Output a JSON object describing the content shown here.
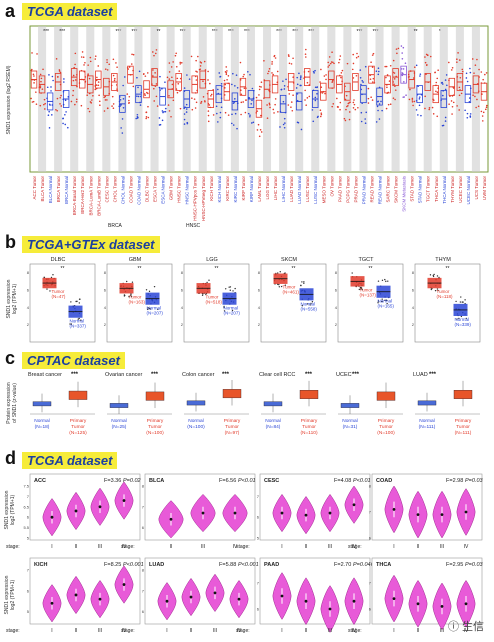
{
  "panels": {
    "a": {
      "letter": "a",
      "banner": "TCGA dataset",
      "ylabel": "SND1 expression (log2 RSEM)"
    },
    "b": {
      "letter": "b",
      "banner": "TCGA+GTEx dataset",
      "ylabel": "SND1 expression\nlog2 (TPM+1)"
    },
    "c": {
      "letter": "c",
      "banner": "CPTAC dataset",
      "ylabel": "Protein expression\nof SND1 (z-value)"
    },
    "d": {
      "letter": "d",
      "banner": "TCGA dataset",
      "ylabel": "SND1 expression\nlog2 (TPM+1)"
    }
  },
  "watermark": "ⓘ 生信",
  "colors": {
    "tumor": "#e23a2a",
    "normal": "#2a45d6",
    "violin": "#e85ad8",
    "gray": "#c8c8c8",
    "banner": "#f6ec3a"
  },
  "chart_data": [
    {
      "type": "box",
      "panel": "a",
      "categories": [
        "ACC.Tumor",
        "BLCA.Tumor",
        "BLCA.Normal",
        "BRCA.Tumor",
        "BRCA.Normal",
        "BRCA-Basal.Tumor",
        "BRCA-Her2.Tumor",
        "BRCA-LumA.Tumor",
        "BRCA-LumB.Tumor",
        "CESC.Tumor",
        "CHOL.Tumor",
        "CHOL.Normal",
        "COAD.Tumor",
        "COAD.Normal",
        "DLBC.Tumor",
        "ESCA.Tumor",
        "ESCA.Normal",
        "GBM.Tumor",
        "HNSC.Tumor",
        "HNSC.Normal",
        "HNSC-HPVpos.Tumor",
        "HNSC-HPVneg.Tumor",
        "KICH.Tumor",
        "KICH.Normal",
        "KIRC.Tumor",
        "KIRC.Normal",
        "KIRP.Tumor",
        "KIRP.Normal",
        "LAML.Tumor",
        "LGG.Tumor",
        "LIHC.Tumor",
        "LIHC.Normal",
        "LUAD.Tumor",
        "LUAD.Normal",
        "LUSC.Tumor",
        "LUSC.Normal",
        "MESO.Tumor",
        "OV.Tumor",
        "PAAD.Tumor",
        "PCPG.Tumor",
        "PRAD.Tumor",
        "PRAD.Normal",
        "READ.Tumor",
        "READ.Normal",
        "SARC.Tumor",
        "SKCM.Tumor",
        "SKCM.Metastasis",
        "STAD.Tumor",
        "STAD.Normal",
        "TGCT.Tumor",
        "THCA.Tumor",
        "THCA.Normal",
        "THYM.Tumor",
        "UCEC.Tumor",
        "UCEC.Normal",
        "UCS.Tumor",
        "UVM.Tumor"
      ],
      "values": [
        11.8,
        11.6,
        10.9,
        11.7,
        11.0,
        11.9,
        11.8,
        11.6,
        11.8,
        11.5,
        11.7,
        10.8,
        12.0,
        11.2,
        11.4,
        11.9,
        11.1,
        11.4,
        11.7,
        11.0,
        11.6,
        11.8,
        11.0,
        11.2,
        11.3,
        10.9,
        11.5,
        11.0,
        10.6,
        11.4,
        11.6,
        10.8,
        11.7,
        10.9,
        11.9,
        11.0,
        11.3,
        11.8,
        11.6,
        11.3,
        11.7,
        11.2,
        12.0,
        11.1,
        11.6,
        11.9,
        12.0,
        11.8,
        11.2,
        11.7,
        11.2,
        11.0,
        11.5,
        11.7,
        11.2,
        11.6,
        11.3
      ],
      "significance": [
        "",
        "***",
        "",
        "***",
        "",
        "",
        "",
        "",
        "",
        "",
        "***",
        "",
        "***",
        "",
        "",
        "**",
        "",
        "",
        "***",
        "",
        "",
        "",
        "***",
        "",
        "***",
        "",
        "***",
        "",
        "",
        "",
        "***",
        "",
        "***",
        "",
        "***",
        "",
        "",
        "",
        "",
        "",
        "***",
        "",
        "***",
        "",
        "",
        "",
        "",
        "**",
        "",
        "",
        "*",
        "",
        "",
        "",
        "",
        "",
        ""
      ],
      "group_labels": [
        "BRCA",
        "HNSC"
      ]
    },
    {
      "type": "box",
      "panel": "b",
      "subplots": [
        {
          "title": "DLBC",
          "sig": "**",
          "tumor_label": "Tumor",
          "tumor_n": "(N=47)",
          "normal_label": "Normal",
          "normal_n": "(N=337)",
          "tumor_median": 6.8,
          "normal_median": 3.5,
          "yticks": [
            2,
            4,
            6,
            8
          ]
        },
        {
          "title": "GBM",
          "sig": "**",
          "tumor_label": "Tumor",
          "tumor_n": "(N=163)",
          "normal_label": "Normal",
          "normal_n": "(N=207)",
          "tumor_median": 6.2,
          "normal_median": 5.0,
          "yticks": [
            2,
            4,
            6,
            8
          ]
        },
        {
          "title": "LGG",
          "sig": "**",
          "tumor_label": "Tumor",
          "tumor_n": "(N=518)",
          "normal_label": "Normal",
          "normal_n": "(N=207)",
          "tumor_median": 6.2,
          "normal_median": 5.0,
          "yticks": [
            2,
            4,
            6,
            8
          ]
        },
        {
          "title": "SKCM",
          "sig": "**",
          "tumor_label": "Tumor",
          "tumor_n": "(N=461)",
          "normal_label": "Normal",
          "normal_n": "(N=558)",
          "tumor_median": 7.3,
          "normal_median": 5.5,
          "yticks": [
            2,
            4,
            6,
            8
          ]
        },
        {
          "title": "TGCT",
          "sig": "**",
          "tumor_label": "Tumor",
          "tumor_n": "(N=137)",
          "normal_label": "Normal",
          "normal_n": "(N=165)",
          "tumor_median": 7.0,
          "normal_median": 5.8,
          "yticks": [
            2,
            4,
            6,
            8
          ]
        },
        {
          "title": "THYM",
          "sig": "**",
          "tumor_label": "Tumor",
          "tumor_n": "(N=118)",
          "normal_label": "Normal",
          "normal_n": "(N=339)",
          "tumor_median": 6.8,
          "normal_median": 3.7,
          "yticks": [
            2,
            4,
            6,
            8
          ]
        }
      ]
    },
    {
      "type": "box",
      "panel": "c",
      "subplots": [
        {
          "title": "Breast cancer",
          "sig": "***",
          "normal_label": "Normal",
          "normal_n": "(N=18)",
          "tumor_label": "Primary\nTumor",
          "tumor_n": "(N=125)",
          "normal_median": -0.8,
          "tumor_median": 0.2
        },
        {
          "title": "Ovarian cancer",
          "sig": "***",
          "normal_label": "Normal",
          "normal_n": "(N=25)",
          "tumor_label": "Primary\nTumor",
          "tumor_n": "(N=100)",
          "normal_median": -1.0,
          "tumor_median": 0.1
        },
        {
          "title": "Colon cancer",
          "sig": "***",
          "normal_label": "Normal",
          "normal_n": "(N=100)",
          "tumor_label": "Primary\nTumor",
          "tumor_n": "(N=97)",
          "normal_median": -0.7,
          "tumor_median": 0.4
        },
        {
          "title": "Clear cell RCC",
          "sig": "***",
          "normal_label": "Normal",
          "normal_n": "(N=84)",
          "tumor_label": "Primary\nTumor",
          "tumor_n": "(N=110)",
          "normal_median": -0.8,
          "tumor_median": 0.3
        },
        {
          "title": "UCEC",
          "sig": "***",
          "normal_label": "Normal",
          "normal_n": "(N=31)",
          "tumor_label": "Primary\nTumor",
          "tumor_n": "(N=100)",
          "normal_median": -1.0,
          "tumor_median": 0.1
        },
        {
          "title": "LUAD",
          "sig": "***",
          "normal_label": "Normal",
          "normal_n": "(N=111)",
          "tumor_label": "Primary\nTumor",
          "tumor_n": "(N=111)",
          "normal_median": -0.7,
          "tumor_median": 0.3
        }
      ]
    },
    {
      "type": "violin",
      "panel": "d",
      "stage_label": "stage:",
      "subplots": [
        {
          "title": "ACC",
          "stats": "F=3.36",
          "p": "P=0.02",
          "stages": [
            "I",
            "II",
            "III",
            "IV"
          ],
          "medians": [
            6.0,
            6.3,
            6.5,
            6.8
          ],
          "ylim": [
            5.0,
            7.5
          ],
          "yticks": [
            5.0,
            5.5,
            6.0,
            6.5,
            7.0,
            7.5
          ]
        },
        {
          "title": "BLCA",
          "stats": "F=6.56",
          "p": "P<0.01",
          "stages": [
            "II",
            "III",
            "IV"
          ],
          "medians": [
            6.4,
            6.7,
            6.7
          ],
          "ylim": [
            5.5,
            8.0
          ],
          "yticks": [
            6,
            7,
            8
          ]
        },
        {
          "title": "CESC",
          "stats": "F=4.08",
          "p": "P<0.01",
          "stages": [
            "I",
            "II",
            "III",
            "IV"
          ],
          "medians": [
            6.2,
            6.1,
            6.2,
            6.6
          ],
          "ylim": [
            5.0,
            7.5
          ],
          "yticks": [
            5,
            6,
            7
          ]
        },
        {
          "title": "COAD",
          "stats": "F=2.98",
          "p": "P=0.03",
          "stages": [
            "I",
            "II",
            "III",
            "IV"
          ],
          "medians": [
            7.1,
            6.9,
            6.9,
            7.0
          ],
          "ylim": [
            6.0,
            8.0
          ],
          "yticks": [
            6,
            7,
            8
          ]
        },
        {
          "title": "KICH",
          "stats": "F=8.25",
          "p": "P<0.001",
          "stages": [
            "I",
            "II",
            "III",
            "IV"
          ],
          "medians": [
            5.4,
            5.8,
            5.6,
            6.3
          ],
          "ylim": [
            4.5,
            7.0
          ],
          "yticks": [
            5,
            6,
            7
          ]
        },
        {
          "title": "LUAD",
          "stats": "F=5.88",
          "p": "P<0.001",
          "stages": [
            "I",
            "II",
            "III",
            "IV"
          ],
          "medians": [
            6.5,
            6.7,
            6.9,
            6.6
          ],
          "ylim": [
            5.5,
            8.0
          ],
          "yticks": [
            6,
            7,
            8
          ]
        },
        {
          "title": "PAAD",
          "stats": "F=2.70",
          "p": "P=0.046",
          "stages": [
            "I",
            "II",
            "III",
            "IV"
          ],
          "medians": [
            6.5,
            6.3,
            6.0,
            6.3
          ],
          "ylim": [
            5.5,
            7.5
          ],
          "yticks": [
            6,
            7
          ]
        },
        {
          "title": "THCA",
          "stats": "F=2.95",
          "p": "P=0.03",
          "stages": [
            "I",
            "II",
            "III",
            "IV"
          ],
          "medians": [
            6.4,
            6.2,
            6.1,
            6.2
          ],
          "ylim": [
            5.5,
            7.5
          ],
          "yticks": [
            6,
            7
          ]
        }
      ]
    }
  ]
}
